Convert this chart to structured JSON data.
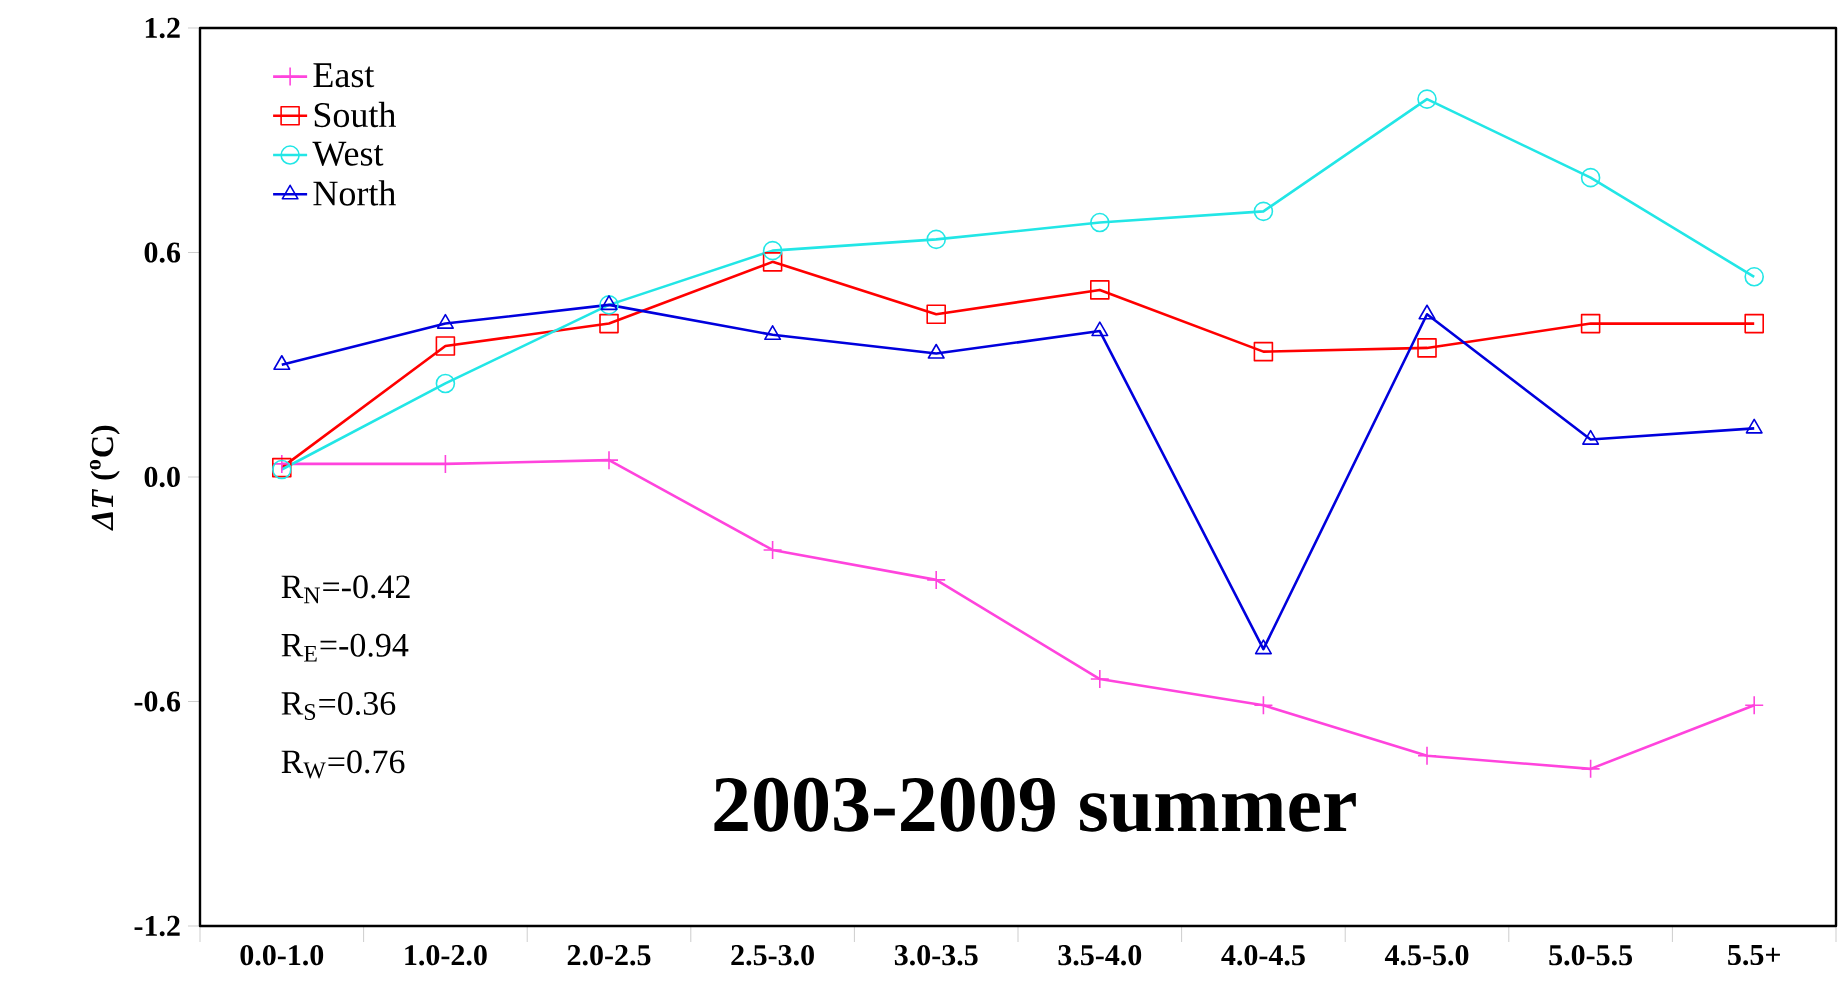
{
  "chart_data": {
    "type": "line",
    "title": "2003-2009 summer",
    "ylabel": "*ΔT* ($^{o}$C)",
    "categories": [
      "0.0-1.0",
      "1.0-2.0",
      "2.0-2.5",
      "2.5-3.0",
      "3.0-3.5",
      "3.5-4.0",
      "4.0-4.5",
      "4.5-5.0",
      "5.0-5.5",
      "5.5+"
    ],
    "series": [
      {
        "name": "East",
        "color": "#ff44dd",
        "marker": "cross",
        "values": [
          0.035,
          0.035,
          0.045,
          -0.195,
          -0.275,
          -0.54,
          -0.61,
          -0.745,
          -0.78,
          -0.61
        ]
      },
      {
        "name": "South",
        "color": "#ff0000",
        "marker": "square",
        "values": [
          0.025,
          0.35,
          0.41,
          0.575,
          0.435,
          0.5,
          0.335,
          0.345,
          0.41,
          0.41
        ]
      },
      {
        "name": "West",
        "color": "#22e6e6",
        "marker": "circle",
        "values": [
          0.02,
          0.25,
          0.46,
          0.605,
          0.635,
          0.68,
          0.71,
          1.01,
          0.8,
          0.535
        ]
      },
      {
        "name": "North",
        "color": "#0000dd",
        "marker": "triangle",
        "values": [
          0.3,
          0.41,
          0.46,
          0.38,
          0.33,
          0.39,
          -0.46,
          0.435,
          0.1,
          0.13
        ]
      }
    ],
    "ylim": [
      -1.2,
      1.2
    ],
    "yticks": [
      -1.2,
      -0.6,
      {
        "value": 0,
        "label": "0.0"
      },
      0.6,
      1.2
    ],
    "legend": "top left",
    "line_style": "solid",
    "annotations": [
      "R$_{N}$=-0.42",
      "R$_{E}$=-0.94",
      "R$_{S}$=0.36",
      "R$_{W}$=0.76"
    ]
  }
}
